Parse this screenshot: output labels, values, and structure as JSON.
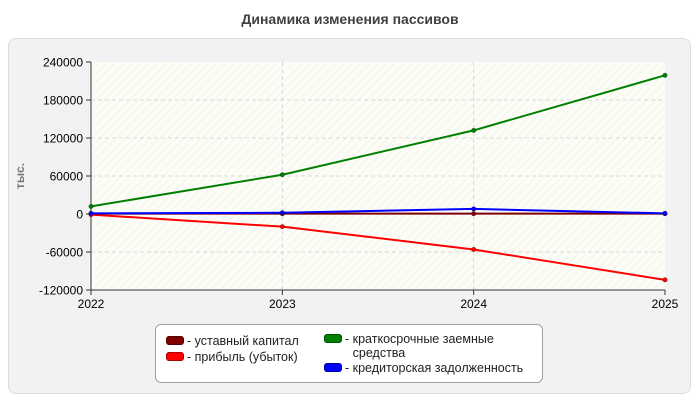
{
  "chart_data": {
    "type": "line",
    "title": "Динамика изменения пассивов",
    "ylabel": "тыс.",
    "xlabel": "",
    "x": [
      "2022",
      "2023",
      "2024",
      "2025"
    ],
    "ylim": [
      -120000,
      240000
    ],
    "yticks": [
      240000,
      180000,
      120000,
      60000,
      0,
      -60000,
      -120000
    ],
    "grid": true,
    "legend_position": "bottom",
    "series": [
      {
        "name": "уставный капитал",
        "color": "#800000",
        "values": [
          500,
          500,
          500,
          500
        ]
      },
      {
        "name": "прибыль (убыток)",
        "color": "#ff0000",
        "values": [
          -1000,
          -20000,
          -56000,
          -104000
        ]
      },
      {
        "name": "краткосрочные заемные средства",
        "color": "#008000",
        "values": [
          12000,
          62000,
          132000,
          219000
        ]
      },
      {
        "name": "кредиторская задолженность",
        "color": "#0000ff",
        "values": [
          1000,
          2000,
          8000,
          1000
        ]
      }
    ]
  }
}
